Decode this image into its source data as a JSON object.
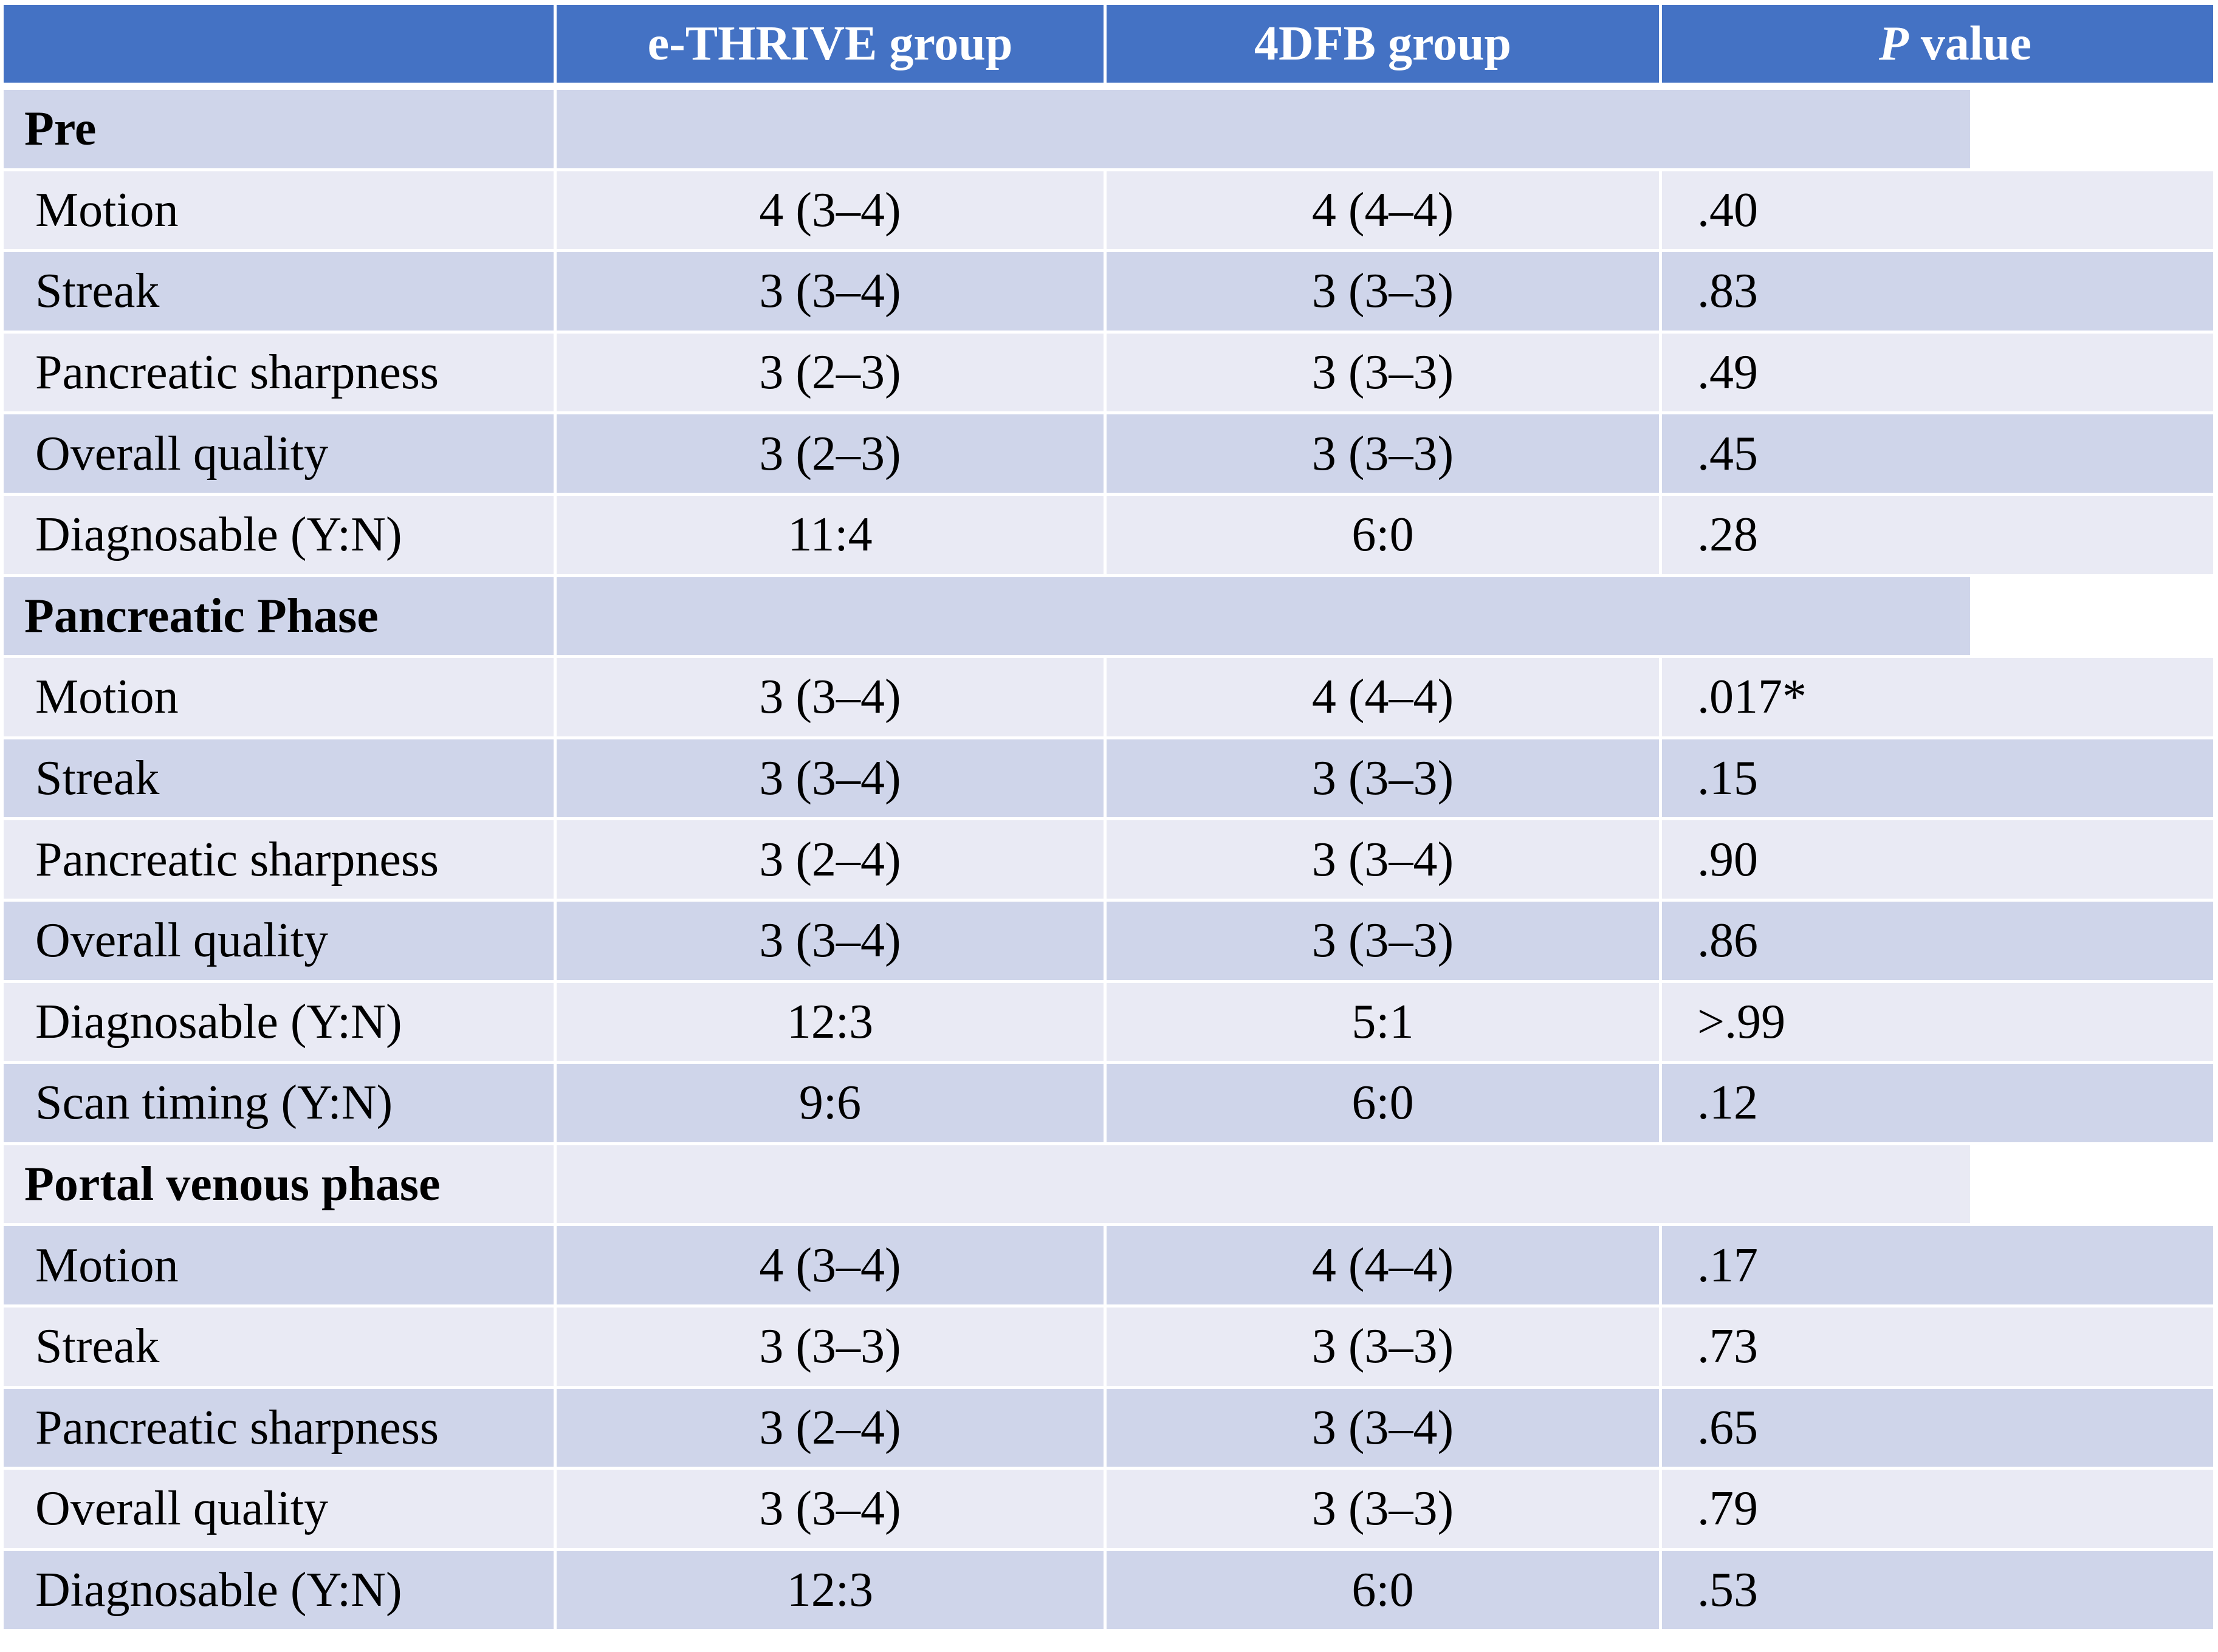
{
  "table": {
    "header": {
      "blank": "",
      "col_ethrive": "e-THRIVE group",
      "col_4dfb": "4DFB group",
      "p_value": {
        "italic": "P",
        "rest": " value"
      }
    },
    "colors": {
      "header_bg": "#4472C4",
      "header_text": "#FFFFFF",
      "band_dark": "#CFD5EA",
      "band_light": "#E9EAF4",
      "body_text": "#000000",
      "background": "#FFFFFF"
    },
    "sections": [
      {
        "label": "Pre",
        "rows": [
          {
            "label": "Motion",
            "ethrive": "4 (3–4)",
            "dfb": "4 (4–4)",
            "p": ".40"
          },
          {
            "label": "Streak",
            "ethrive": "3 (3–4)",
            "dfb": "3 (3–3)",
            "p": ".83"
          },
          {
            "label": "Pancreatic sharpness",
            "ethrive": "3 (2–3)",
            "dfb": "3 (3–3)",
            "p": ".49"
          },
          {
            "label": "Overall quality",
            "ethrive": "3 (2–3)",
            "dfb": "3 (3–3)",
            "p": ".45"
          },
          {
            "label": "Diagnosable (Y:N)",
            "ethrive": "11:4",
            "dfb": "6:0",
            "p": ".28"
          }
        ]
      },
      {
        "label": "Pancreatic Phase",
        "rows": [
          {
            "label": "Motion",
            "ethrive": "3 (3–4)",
            "dfb": "4 (4–4)",
            "p": ".017*"
          },
          {
            "label": "Streak",
            "ethrive": "3 (3–4)",
            "dfb": "3 (3–3)",
            "p": ".15"
          },
          {
            "label": "Pancreatic sharpness",
            "ethrive": "3 (2–4)",
            "dfb": "3 (3–4)",
            "p": ".90"
          },
          {
            "label": "Overall quality",
            "ethrive": "3 (3–4)",
            "dfb": "3 (3–3)",
            "p": ".86"
          },
          {
            "label": "Diagnosable (Y:N)",
            "ethrive": "12:3",
            "dfb": "5:1",
            "p": ">.99"
          },
          {
            "label": "Scan timing (Y:N)",
            "ethrive": "9:6",
            "dfb": "6:0",
            "p": ".12"
          }
        ]
      },
      {
        "label": "Portal venous phase",
        "rows": [
          {
            "label": "Motion",
            "ethrive": "4 (3–4)",
            "dfb": "4 (4–4)",
            "p": ".17"
          },
          {
            "label": "Streak",
            "ethrive": "3 (3–3)",
            "dfb": "3 (3–3)",
            "p": ".73"
          },
          {
            "label": "Pancreatic sharpness",
            "ethrive": "3 (2–4)",
            "dfb": "3 (3–4)",
            "p": ".65"
          },
          {
            "label": "Overall quality",
            "ethrive": "3 (3–4)",
            "dfb": "3 (3–3)",
            "p": ".79"
          },
          {
            "label": "Diagnosable (Y:N)",
            "ethrive": "12:3",
            "dfb": "6:0",
            "p": ".53"
          }
        ]
      }
    ]
  }
}
